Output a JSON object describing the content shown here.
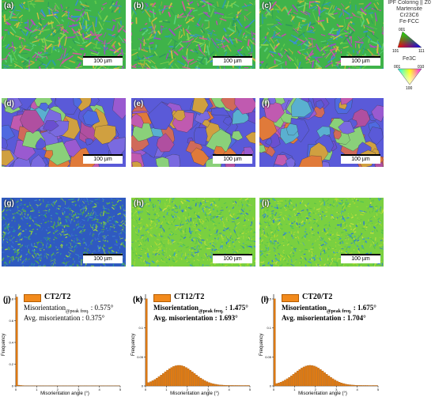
{
  "panels": [
    {
      "label": "(a)",
      "scale": "100 µm",
      "kind": "ipf-green"
    },
    {
      "label": "(b)",
      "scale": "100 µm",
      "kind": "ipf-green"
    },
    {
      "label": "(c)",
      "scale": "100 µm",
      "kind": "ipf-green"
    },
    {
      "label": "(d)",
      "scale": "100 µm",
      "kind": "ipf-blue"
    },
    {
      "label": "(e)",
      "scale": "100 µm",
      "kind": "ipf-blue"
    },
    {
      "label": "(f)",
      "scale": "100 µm",
      "kind": "ipf-blue"
    },
    {
      "label": "(g)",
      "scale": "100 µm",
      "kind": "kam-blue"
    },
    {
      "label": "(h)",
      "scale": "100 µm",
      "kind": "kam-green"
    },
    {
      "label": "(i)",
      "scale": "100 µm",
      "kind": "kam-green"
    }
  ],
  "legend": {
    "title": "IPF Coloring || Z0",
    "phases": [
      "Martensite",
      "Cr23C6",
      "Fe-FCC"
    ],
    "tri_ticks": [
      "001",
      "101",
      "111"
    ],
    "fe3c_label": "Fe3C",
    "fe3c_ticks": [
      "001",
      "010",
      "100"
    ]
  },
  "histograms": [
    {
      "label": "(j)",
      "sample": "CT2/T2",
      "peak_prefix": "Misorientation",
      "peak_sub": "@peak freq.",
      "peak_value": ": 0.575°",
      "avg_text": "Avg. misorientation : 0.375°",
      "bold": false,
      "ylabel": "Frequency",
      "xlabel": "Misorientation angle (°)",
      "yticks": [
        "0",
        "0.2",
        "0.4",
        "0.6",
        "0.8"
      ],
      "xticks": [
        "0",
        "1",
        "2",
        "3",
        "4",
        "5"
      ]
    },
    {
      "label": "(k)",
      "sample": "CT12/T2",
      "peak_prefix": "Misorientation",
      "peak_sub": "@peak freq.",
      "peak_value": ": 1.475°",
      "avg_text": "Avg. misorientation : 1.693°",
      "bold": true,
      "ylabel": "Frequency",
      "xlabel": "Misorientation angle (°)",
      "yticks": [
        "0",
        "0.05",
        "0.1",
        "0.15"
      ],
      "xticks": [
        "0",
        "1",
        "2",
        "3",
        "4",
        "5"
      ]
    },
    {
      "label": "(l)",
      "sample": "CT20/T2",
      "peak_prefix": "Misorientation",
      "peak_sub": "@peak freq.",
      "peak_value": ": 1.675°",
      "avg_text": "Avg. misorientation : 1.704°",
      "bold": true,
      "ylabel": "Frequency",
      "xlabel": "Misorientation angle (°)",
      "yticks": [
        "0",
        "0.05",
        "0.1",
        "0.15"
      ],
      "xticks": [
        "0",
        "1",
        "2",
        "3",
        "4",
        "5"
      ]
    }
  ],
  "colors": {
    "bar": "#e07b13",
    "bar_edge": "#8a4a06"
  }
}
